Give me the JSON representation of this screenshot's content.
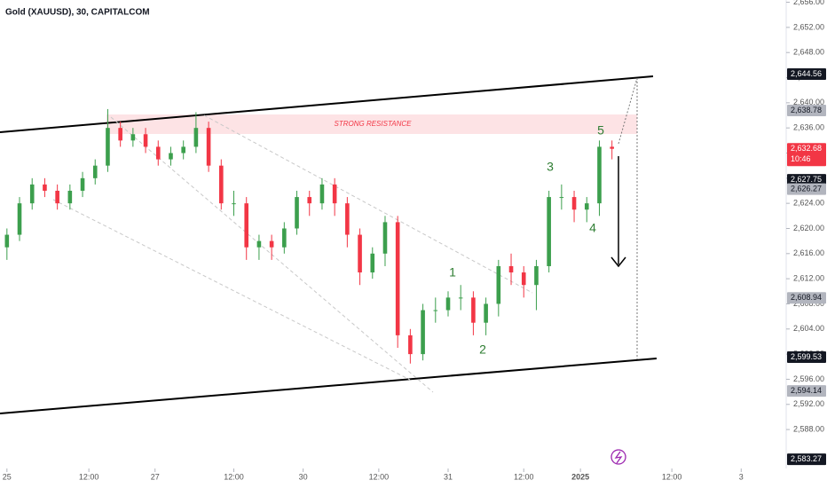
{
  "chart_data": {
    "type": "candlestick",
    "title": "Gold (XAUUSD), 30, CAPITALCOM",
    "x": [
      0,
      2,
      4,
      6,
      8,
      10,
      12,
      14,
      16,
      18,
      20,
      22,
      24,
      26,
      28,
      30,
      32,
      34,
      36,
      38,
      40,
      42,
      44,
      46,
      48,
      50,
      52,
      54,
      56,
      58,
      60,
      62,
      64,
      66,
      68,
      70,
      72,
      74,
      76,
      78,
      80,
      82,
      84,
      86,
      88,
      90,
      92,
      94,
      96
    ],
    "open": [
      2617,
      2619,
      2624,
      2627,
      2626,
      2624,
      2626,
      2628,
      2630,
      2636,
      2634,
      2635,
      2633,
      2631,
      2632,
      2633,
      2636,
      2630,
      2624,
      2624,
      2617,
      2618,
      2617,
      2620,
      2625,
      2624,
      2627,
      2624,
      2619,
      2613,
      2616,
      2621,
      2603,
      2600,
      2607,
      2607,
      2609,
      2609,
      2605,
      2608,
      2614,
      2613,
      2611,
      2614,
      2625,
      2625,
      2623,
      2624,
      2633
    ],
    "high": [
      2620,
      2625,
      2628,
      2628,
      2627,
      2627,
      2629,
      2631,
      2639,
      2637,
      2636,
      2636,
      2634,
      2633,
      2634,
      2638.5,
      2637,
      2631,
      2626,
      2625,
      2619,
      2619,
      2621,
      2626,
      2626,
      2628,
      2628,
      2625,
      2620,
      2617,
      2622,
      2622,
      2604,
      2608,
      2609,
      2610,
      2611,
      2610,
      2609,
      2615,
      2616,
      2614,
      2615,
      2626,
      2627,
      2626,
      2625,
      2634,
      2634
    ],
    "low": [
      2615,
      2618,
      2623,
      2625,
      2623,
      2623,
      2625,
      2627,
      2629,
      2633,
      2633,
      2632,
      2630,
      2630,
      2631,
      2632,
      2629,
      2623,
      2622,
      2615,
      2615,
      2615,
      2616,
      2619,
      2622,
      2623,
      2622,
      2617,
      2611,
      2612,
      2614,
      2601,
      2598.5,
      2599,
      2605,
      2606,
      2607,
      2603,
      2603,
      2606,
      2611,
      2609,
      2607,
      2613,
      2623,
      2621,
      2621,
      2622,
      2631
    ],
    "close": [
      2619,
      2624,
      2627,
      2626,
      2624,
      2626,
      2628,
      2630,
      2636,
      2634,
      2635,
      2633,
      2631,
      2632,
      2633,
      2636,
      2630,
      2624,
      2624,
      2617,
      2618,
      2617,
      2620,
      2625,
      2624,
      2627,
      2624,
      2619,
      2613,
      2616,
      2621,
      2603,
      2600,
      2607,
      2607,
      2609,
      2609,
      2605,
      2608,
      2614,
      2613,
      2611,
      2614,
      2625,
      2625,
      2623,
      2624,
      2633,
      2632.68
    ],
    "up_color": "#3c9f4d",
    "down_color": "#f23645",
    "xlim": [
      -1.1,
      123.5
    ],
    "xticks": [
      {
        "value": 0,
        "label": "25"
      },
      {
        "value": 13,
        "label": "12:00"
      },
      {
        "value": 23.5,
        "label": "27"
      },
      {
        "value": 36,
        "label": "12:00"
      },
      {
        "value": 47,
        "label": "30"
      },
      {
        "value": 59,
        "label": "12:00"
      },
      {
        "value": 70,
        "label": "31"
      },
      {
        "value": 82,
        "label": "12:00"
      },
      {
        "value": 91,
        "label": "2025"
      },
      {
        "value": 105.5,
        "label": "12:00"
      },
      {
        "value": 116.5,
        "label": "3"
      }
    ],
    "ylim": [
      2581.8,
      2656.36
    ],
    "yticks": [
      {
        "value": 2656,
        "label": "2,656.00"
      },
      {
        "value": 2652,
        "label": "2,652.00"
      },
      {
        "value": 2648,
        "label": "2,648.00"
      },
      {
        "value": 2644,
        "label": "2,644.00"
      },
      {
        "value": 2640,
        "label": "2,640.00"
      },
      {
        "value": 2636,
        "label": "2,636.00"
      },
      {
        "value": 2632,
        "label": "2,632.00"
      },
      {
        "value": 2628,
        "label": "2,628.00"
      },
      {
        "value": 2624,
        "label": "2,624.00"
      },
      {
        "value": 2620,
        "label": "2,620.00"
      },
      {
        "value": 2616,
        "label": "2,616.00"
      },
      {
        "value": 2612,
        "label": "2,612.00"
      },
      {
        "value": 2608,
        "label": "2,608.00"
      },
      {
        "value": 2604,
        "label": "2,604.00"
      },
      {
        "value": 2600,
        "label": "2,600.00"
      },
      {
        "value": 2596,
        "label": "2,596.00"
      },
      {
        "value": 2592,
        "label": "2,592.00"
      },
      {
        "value": 2588,
        "label": "2,588.00"
      }
    ],
    "grid": false,
    "price_badges": [
      {
        "value": 2644.56,
        "label": "2,644.56",
        "color": "#131722",
        "text_color": "#ffffff"
      },
      {
        "value": 2638.78,
        "label": "2,638.78",
        "color": "#b2b5be",
        "text_color": "#131722"
      },
      {
        "value": 2632.68,
        "label": "2,632.68",
        "color": "#f23645",
        "text_color": "#ffffff",
        "countdown": "10:46"
      },
      {
        "value": 2627.75,
        "label": "2,627.75",
        "color": "#131722",
        "text_color": "#ffffff"
      },
      {
        "value": 2626.27,
        "label": "2,626.27",
        "color": "#b2b5be",
        "text_color": "#131722"
      },
      {
        "value": 2608.94,
        "label": "2,608.94",
        "color": "#b2b5be",
        "text_color": "#131722"
      },
      {
        "value": 2599.53,
        "label": "2,599.53",
        "color": "#131722",
        "text_color": "#ffffff"
      },
      {
        "value": 2594.14,
        "label": "2,594.14",
        "color": "#b2b5be",
        "text_color": "#131722"
      },
      {
        "value": 2583.27,
        "label": "2,583.27",
        "color": "#131722",
        "text_color": "#ffffff"
      }
    ],
    "annotations": {
      "resistance": "STRONG RESISTANCE",
      "waves": [
        "1",
        "2",
        "3",
        "4",
        "5"
      ]
    }
  }
}
